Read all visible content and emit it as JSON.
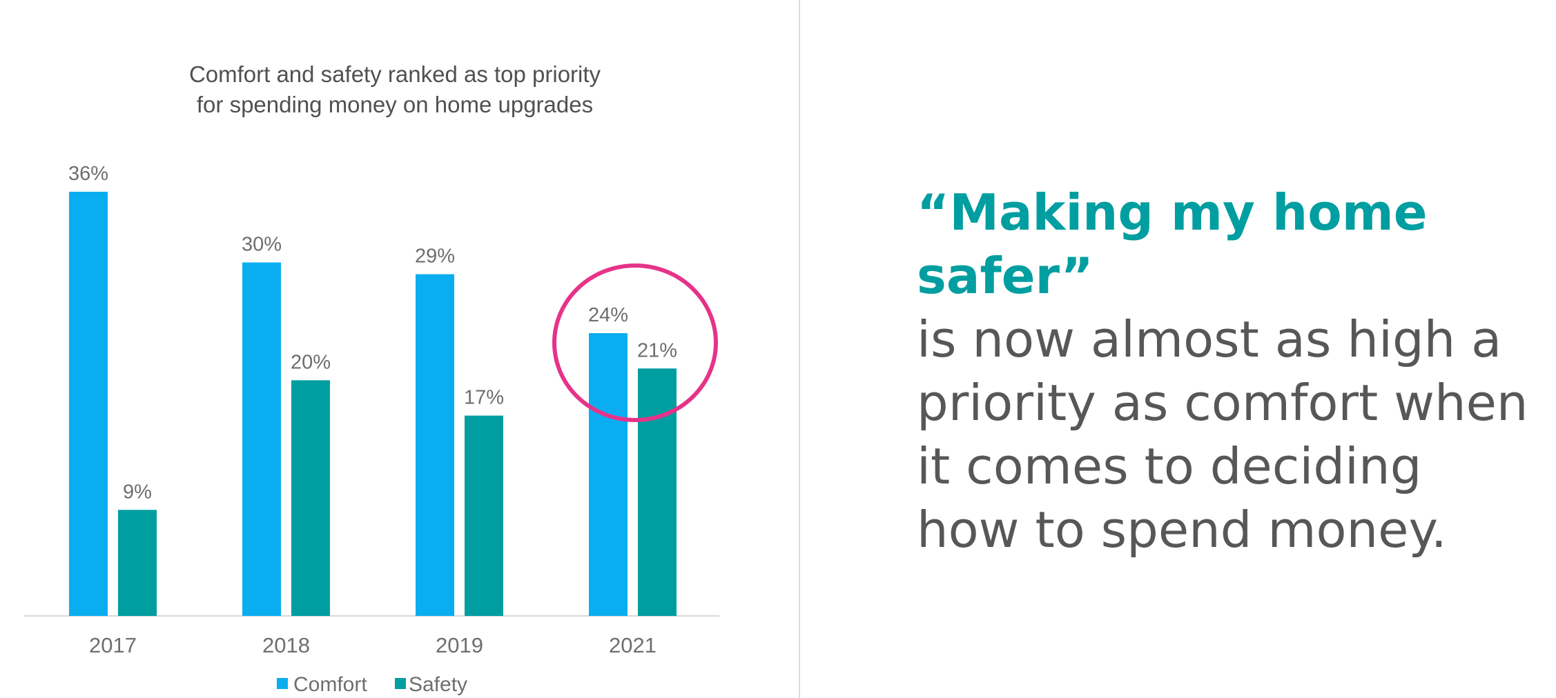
{
  "chart_data": {
    "type": "bar",
    "title": [
      "Comfort and safety ranked as top priority",
      "for spending money on home upgrades"
    ],
    "categories": [
      "2017",
      "2018",
      "2019",
      "2021"
    ],
    "series": [
      {
        "name": "Comfort",
        "values": [
          36,
          30,
          29,
          24
        ],
        "labels": [
          "36%",
          "30%",
          "29%",
          "24%"
        ],
        "color": "#0aaef0"
      },
      {
        "name": "Safety",
        "values": [
          9,
          20,
          17,
          21
        ],
        "labels": [
          "9%",
          "20%",
          "17%",
          "21%"
        ],
        "color": "#009ea0"
      }
    ],
    "ylim": [
      0,
      36
    ],
    "grid": false,
    "legend_position": "bottom-center",
    "highlight": {
      "category": "2021",
      "shape": "circle",
      "color": "#e6338a"
    }
  },
  "quote": {
    "highlight": "“Making my home safer”",
    "body": "is now almost as high a priority as comfort when it comes to deciding how to spend money.",
    "highlight_color": "#009ea0",
    "text_color": "#575757"
  }
}
